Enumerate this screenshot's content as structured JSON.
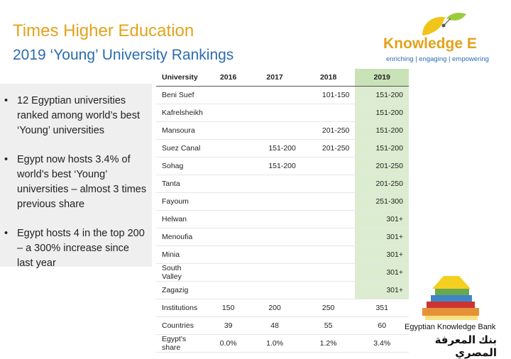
{
  "header": {
    "title": "Times Higher Education",
    "subtitle": "2019 ‘Young’ University Rankings"
  },
  "logo": {
    "name": "Knowledge E",
    "tagline": "enriching | engaging | empowering"
  },
  "bullets": [
    "12 Egyptian universities ranked among world’s best ‘Young’ universities",
    "Egypt now hosts 3.4% of world’s best ‘Young’ universities – almost 3 times previous share",
    "Egypt hosts 4 in the top 200 – a 300% increase since last year"
  ],
  "table": {
    "columns": [
      "University",
      "2016",
      "2017",
      "2018",
      "2019"
    ],
    "rows": [
      [
        "Beni Suef",
        null,
        null,
        "101-150",
        "151-200"
      ],
      [
        "Kafrelsheikh",
        null,
        null,
        null,
        "151-200"
      ],
      [
        "Mansoura",
        null,
        null,
        "201-250",
        "151-200"
      ],
      [
        "Suez Canal",
        null,
        "151-200",
        "201-250",
        "151-200"
      ],
      [
        "Sohag",
        null,
        "151-200",
        null,
        "201-250"
      ],
      [
        "Tanta",
        null,
        null,
        null,
        "201-250"
      ],
      [
        "Fayoum",
        null,
        null,
        null,
        "251-300"
      ],
      [
        "Helwan",
        null,
        null,
        null,
        "301+"
      ],
      [
        "Menoufia",
        null,
        null,
        null,
        "301+"
      ],
      [
        "Minia",
        null,
        null,
        null,
        "301+"
      ],
      [
        "South Valley",
        null,
        null,
        null,
        "301+"
      ],
      [
        "Zagazig",
        null,
        null,
        null,
        "301+"
      ]
    ],
    "summary": [
      [
        "Institutions",
        150,
        200,
        250,
        351
      ],
      [
        "Countries",
        39,
        48,
        55,
        60
      ],
      [
        "Egypt's share",
        "0.0%",
        "1.0%",
        "1.2%",
        "3.4%"
      ]
    ]
  },
  "footer": {
    "bank_en": "Egyptian Knowledge Bank",
    "bank_ar": "بنك المعرفة المصري"
  }
}
